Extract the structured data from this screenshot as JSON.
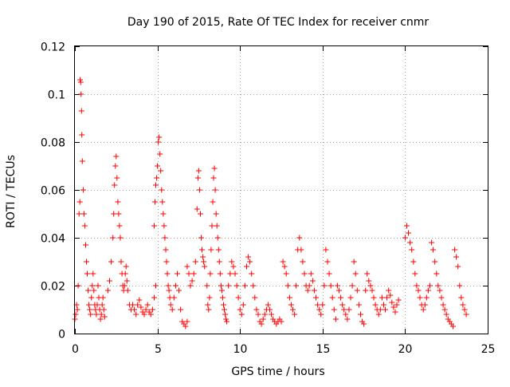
{
  "chart_data": {
    "type": "scatter",
    "title": "Day 190 of 2015, Rate Of TEC Index for receiver cnmr",
    "xlabel": "GPS time / hours",
    "ylabel": "ROTI / TECUs",
    "xlim": [
      0,
      25
    ],
    "ylim": [
      0,
      0.12
    ],
    "xticks": [
      0,
      5,
      10,
      15,
      20,
      25
    ],
    "xtick_labels": [
      "0",
      "5",
      "10",
      "15",
      "20",
      "25"
    ],
    "yticks": [
      0,
      0.02,
      0.04,
      0.06,
      0.08,
      0.1,
      0.12
    ],
    "ytick_labels": [
      "0",
      "0.02",
      "0.04",
      "0.06",
      "0.08",
      "0.1",
      "0.12"
    ],
    "grid": true,
    "marker": "plus",
    "series": [
      {
        "name": "ROTI",
        "color": "#ff0000",
        "points": [
          [
            0.0,
            0.006
          ],
          [
            0.05,
            0.008
          ],
          [
            0.1,
            0.012
          ],
          [
            0.15,
            0.01
          ],
          [
            0.2,
            0.02
          ],
          [
            0.25,
            0.05
          ],
          [
            0.3,
            0.055
          ],
          [
            0.32,
            0.106
          ],
          [
            0.35,
            0.105
          ],
          [
            0.37,
            0.1
          ],
          [
            0.4,
            0.093
          ],
          [
            0.42,
            0.083
          ],
          [
            0.45,
            0.072
          ],
          [
            0.5,
            0.06
          ],
          [
            0.55,
            0.05
          ],
          [
            0.6,
            0.045
          ],
          [
            0.65,
            0.037
          ],
          [
            0.7,
            0.03
          ],
          [
            0.75,
            0.025
          ],
          [
            0.8,
            0.018
          ],
          [
            0.85,
            0.012
          ],
          [
            0.9,
            0.01
          ],
          [
            0.95,
            0.008
          ],
          [
            1.0,
            0.015
          ],
          [
            1.05,
            0.02
          ],
          [
            1.1,
            0.025
          ],
          [
            1.15,
            0.018
          ],
          [
            1.2,
            0.012
          ],
          [
            1.25,
            0.01
          ],
          [
            1.3,
            0.008
          ],
          [
            1.35,
            0.012
          ],
          [
            1.4,
            0.02
          ],
          [
            1.45,
            0.015
          ],
          [
            1.5,
            0.01
          ],
          [
            1.55,
            0.006
          ],
          [
            1.6,
            0.008
          ],
          [
            1.65,
            0.012
          ],
          [
            1.7,
            0.015
          ],
          [
            1.75,
            0.01
          ],
          [
            1.8,
            0.007
          ],
          [
            2.0,
            0.018
          ],
          [
            2.1,
            0.022
          ],
          [
            2.2,
            0.03
          ],
          [
            2.3,
            0.04
          ],
          [
            2.35,
            0.05
          ],
          [
            2.4,
            0.062
          ],
          [
            2.45,
            0.07
          ],
          [
            2.5,
            0.074
          ],
          [
            2.55,
            0.065
          ],
          [
            2.6,
            0.055
          ],
          [
            2.65,
            0.05
          ],
          [
            2.7,
            0.045
          ],
          [
            2.75,
            0.04
          ],
          [
            2.8,
            0.03
          ],
          [
            2.85,
            0.025
          ],
          [
            2.9,
            0.02
          ],
          [
            2.95,
            0.018
          ],
          [
            3.0,
            0.02
          ],
          [
            3.05,
            0.025
          ],
          [
            3.1,
            0.028
          ],
          [
            3.15,
            0.022
          ],
          [
            3.2,
            0.018
          ],
          [
            3.3,
            0.012
          ],
          [
            3.4,
            0.01
          ],
          [
            3.5,
            0.012
          ],
          [
            3.6,
            0.01
          ],
          [
            3.7,
            0.008
          ],
          [
            3.8,
            0.012
          ],
          [
            3.9,
            0.014
          ],
          [
            4.0,
            0.011
          ],
          [
            4.1,
            0.009
          ],
          [
            4.2,
            0.008
          ],
          [
            4.3,
            0.01
          ],
          [
            4.4,
            0.012
          ],
          [
            4.5,
            0.009
          ],
          [
            4.6,
            0.008
          ],
          [
            4.7,
            0.01
          ],
          [
            4.8,
            0.015
          ],
          [
            4.9,
            0.02
          ],
          [
            4.8,
            0.045
          ],
          [
            4.85,
            0.055
          ],
          [
            4.9,
            0.062
          ],
          [
            4.95,
            0.065
          ],
          [
            5.0,
            0.07
          ],
          [
            5.05,
            0.08
          ],
          [
            5.1,
            0.082
          ],
          [
            5.15,
            0.075
          ],
          [
            5.2,
            0.068
          ],
          [
            5.25,
            0.06
          ],
          [
            5.3,
            0.055
          ],
          [
            5.35,
            0.05
          ],
          [
            5.4,
            0.045
          ],
          [
            5.45,
            0.04
          ],
          [
            5.5,
            0.035
          ],
          [
            5.55,
            0.03
          ],
          [
            5.6,
            0.025
          ],
          [
            5.65,
            0.02
          ],
          [
            5.7,
            0.018
          ],
          [
            5.75,
            0.015
          ],
          [
            5.8,
            0.012
          ],
          [
            5.9,
            0.01
          ],
          [
            6.0,
            0.015
          ],
          [
            6.1,
            0.02
          ],
          [
            6.2,
            0.025
          ],
          [
            6.3,
            0.018
          ],
          [
            6.4,
            0.01
          ],
          [
            6.5,
            0.005
          ],
          [
            6.6,
            0.004
          ],
          [
            6.7,
            0.003
          ],
          [
            6.8,
            0.005
          ],
          [
            6.8,
            0.028
          ],
          [
            6.9,
            0.025
          ],
          [
            7.0,
            0.02
          ],
          [
            7.1,
            0.022
          ],
          [
            7.2,
            0.025
          ],
          [
            7.3,
            0.03
          ],
          [
            7.4,
            0.052
          ],
          [
            7.45,
            0.065
          ],
          [
            7.5,
            0.068
          ],
          [
            7.55,
            0.06
          ],
          [
            7.6,
            0.05
          ],
          [
            7.65,
            0.04
          ],
          [
            7.7,
            0.035
          ],
          [
            7.75,
            0.032
          ],
          [
            7.8,
            0.03
          ],
          [
            7.85,
            0.028
          ],
          [
            8.0,
            0.02
          ],
          [
            8.05,
            0.012
          ],
          [
            8.1,
            0.01
          ],
          [
            8.15,
            0.015
          ],
          [
            8.2,
            0.025
          ],
          [
            8.25,
            0.035
          ],
          [
            8.3,
            0.045
          ],
          [
            8.35,
            0.055
          ],
          [
            8.4,
            0.065
          ],
          [
            8.45,
            0.069
          ],
          [
            8.5,
            0.06
          ],
          [
            8.55,
            0.05
          ],
          [
            8.6,
            0.045
          ],
          [
            8.65,
            0.04
          ],
          [
            8.7,
            0.035
          ],
          [
            8.75,
            0.03
          ],
          [
            8.8,
            0.025
          ],
          [
            8.85,
            0.02
          ],
          [
            8.9,
            0.018
          ],
          [
            8.95,
            0.015
          ],
          [
            9.0,
            0.012
          ],
          [
            9.05,
            0.01
          ],
          [
            9.1,
            0.008
          ],
          [
            9.15,
            0.006
          ],
          [
            9.2,
            0.005
          ],
          [
            9.3,
            0.02
          ],
          [
            9.4,
            0.025
          ],
          [
            9.5,
            0.03
          ],
          [
            9.6,
            0.028
          ],
          [
            9.7,
            0.025
          ],
          [
            9.8,
            0.02
          ],
          [
            9.9,
            0.015
          ],
          [
            10.0,
            0.01
          ],
          [
            10.1,
            0.008
          ],
          [
            10.2,
            0.012
          ],
          [
            10.3,
            0.02
          ],
          [
            10.4,
            0.028
          ],
          [
            10.5,
            0.032
          ],
          [
            10.6,
            0.03
          ],
          [
            10.7,
            0.025
          ],
          [
            10.8,
            0.02
          ],
          [
            10.9,
            0.015
          ],
          [
            11.0,
            0.01
          ],
          [
            11.1,
            0.008
          ],
          [
            11.2,
            0.005
          ],
          [
            11.3,
            0.004
          ],
          [
            11.4,
            0.006
          ],
          [
            11.5,
            0.008
          ],
          [
            11.6,
            0.01
          ],
          [
            11.7,
            0.012
          ],
          [
            11.8,
            0.01
          ],
          [
            11.9,
            0.008
          ],
          [
            12.0,
            0.006
          ],
          [
            12.1,
            0.005
          ],
          [
            12.2,
            0.004
          ],
          [
            12.3,
            0.005
          ],
          [
            12.4,
            0.006
          ],
          [
            12.5,
            0.005
          ],
          [
            12.6,
            0.03
          ],
          [
            12.7,
            0.028
          ],
          [
            12.8,
            0.025
          ],
          [
            12.9,
            0.02
          ],
          [
            13.0,
            0.015
          ],
          [
            13.1,
            0.012
          ],
          [
            13.2,
            0.01
          ],
          [
            13.3,
            0.008
          ],
          [
            13.4,
            0.02
          ],
          [
            13.5,
            0.035
          ],
          [
            13.6,
            0.04
          ],
          [
            13.7,
            0.035
          ],
          [
            13.8,
            0.03
          ],
          [
            13.9,
            0.025
          ],
          [
            14.0,
            0.02
          ],
          [
            14.1,
            0.018
          ],
          [
            14.2,
            0.02
          ],
          [
            14.3,
            0.025
          ],
          [
            14.4,
            0.022
          ],
          [
            14.5,
            0.018
          ],
          [
            14.6,
            0.015
          ],
          [
            14.7,
            0.012
          ],
          [
            14.8,
            0.01
          ],
          [
            14.9,
            0.008
          ],
          [
            15.0,
            0.012
          ],
          [
            15.1,
            0.02
          ],
          [
            15.2,
            0.035
          ],
          [
            15.3,
            0.03
          ],
          [
            15.4,
            0.025
          ],
          [
            15.5,
            0.02
          ],
          [
            15.6,
            0.015
          ],
          [
            15.7,
            0.01
          ],
          [
            15.8,
            0.006
          ],
          [
            15.9,
            0.02
          ],
          [
            16.0,
            0.018
          ],
          [
            16.1,
            0.015
          ],
          [
            16.2,
            0.012
          ],
          [
            16.3,
            0.01
          ],
          [
            16.4,
            0.008
          ],
          [
            16.5,
            0.006
          ],
          [
            16.6,
            0.01
          ],
          [
            16.7,
            0.015
          ],
          [
            16.8,
            0.02
          ],
          [
            16.9,
            0.03
          ],
          [
            17.0,
            0.025
          ],
          [
            17.1,
            0.018
          ],
          [
            17.2,
            0.012
          ],
          [
            17.3,
            0.008
          ],
          [
            17.4,
            0.005
          ],
          [
            17.5,
            0.004
          ],
          [
            17.6,
            0.018
          ],
          [
            17.7,
            0.025
          ],
          [
            17.8,
            0.022
          ],
          [
            17.9,
            0.02
          ],
          [
            18.0,
            0.018
          ],
          [
            18.1,
            0.015
          ],
          [
            18.2,
            0.012
          ],
          [
            18.3,
            0.01
          ],
          [
            18.4,
            0.008
          ],
          [
            18.5,
            0.01
          ],
          [
            18.6,
            0.015
          ],
          [
            18.7,
            0.012
          ],
          [
            18.8,
            0.01
          ],
          [
            18.9,
            0.015
          ],
          [
            19.0,
            0.018
          ],
          [
            19.1,
            0.016
          ],
          [
            19.2,
            0.013
          ],
          [
            19.3,
            0.011
          ],
          [
            19.4,
            0.009
          ],
          [
            19.5,
            0.012
          ],
          [
            19.6,
            0.014
          ],
          [
            20.0,
            0.04
          ],
          [
            20.1,
            0.045
          ],
          [
            20.2,
            0.042
          ],
          [
            20.3,
            0.038
          ],
          [
            20.4,
            0.035
          ],
          [
            20.5,
            0.03
          ],
          [
            20.6,
            0.025
          ],
          [
            20.7,
            0.02
          ],
          [
            20.8,
            0.018
          ],
          [
            20.9,
            0.015
          ],
          [
            21.0,
            0.012
          ],
          [
            21.1,
            0.01
          ],
          [
            21.2,
            0.012
          ],
          [
            21.3,
            0.015
          ],
          [
            21.4,
            0.018
          ],
          [
            21.5,
            0.02
          ],
          [
            21.6,
            0.038
          ],
          [
            21.7,
            0.035
          ],
          [
            21.8,
            0.03
          ],
          [
            21.9,
            0.025
          ],
          [
            22.0,
            0.02
          ],
          [
            22.1,
            0.018
          ],
          [
            22.2,
            0.015
          ],
          [
            22.3,
            0.012
          ],
          [
            22.4,
            0.01
          ],
          [
            22.5,
            0.008
          ],
          [
            22.6,
            0.006
          ],
          [
            22.7,
            0.005
          ],
          [
            22.8,
            0.004
          ],
          [
            22.9,
            0.003
          ],
          [
            23.0,
            0.035
          ],
          [
            23.1,
            0.032
          ],
          [
            23.2,
            0.028
          ],
          [
            23.3,
            0.02
          ],
          [
            23.4,
            0.015
          ],
          [
            23.5,
            0.012
          ],
          [
            23.6,
            0.01
          ],
          [
            23.7,
            0.008
          ]
        ]
      }
    ]
  }
}
